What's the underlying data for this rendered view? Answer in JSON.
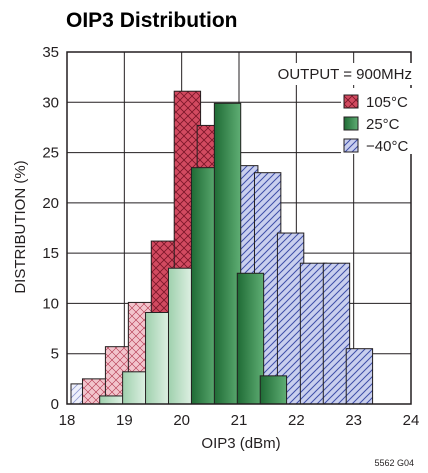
{
  "chart_data": {
    "type": "bar",
    "title": "OIP3 Distribution",
    "xlabel": "OIP3 (dBm)",
    "ylabel": "DISTRIBUTION (%)",
    "xlim": [
      18,
      24
    ],
    "ylim": [
      0,
      35
    ],
    "xticks": [
      18,
      19,
      20,
      21,
      22,
      23,
      24
    ],
    "yticks": [
      0,
      5,
      10,
      15,
      20,
      25,
      30,
      35
    ],
    "grid": true,
    "annotation": "OUTPUT = 900MHz",
    "legend_position": "top-right",
    "footnote": "5562 G04",
    "series": [
      {
        "name": "−40°C",
        "style": "diagonal-hatch",
        "color": "#6b78c8",
        "bins": [
          {
            "x": 18.3,
            "value": 2.0
          },
          {
            "x": 18.7,
            "value": 2.2
          },
          {
            "x": 19.1,
            "value": 3.0
          },
          {
            "x": 19.5,
            "value": 4.5
          },
          {
            "x": 19.9,
            "value": 7.0
          },
          {
            "x": 20.3,
            "value": 13.0
          },
          {
            "x": 20.7,
            "value": 22.5
          },
          {
            "x": 21.1,
            "value": 23.7
          },
          {
            "x": 21.5,
            "value": 23.0
          },
          {
            "x": 21.9,
            "value": 17.0
          },
          {
            "x": 22.3,
            "value": 14.0
          },
          {
            "x": 22.7,
            "value": 14.0
          },
          {
            "x": 23.1,
            "value": 5.5
          }
        ]
      },
      {
        "name": "105°C",
        "style": "crosshatch",
        "color": "#c0304a",
        "bins": [
          {
            "x": 18.5,
            "value": 2.5
          },
          {
            "x": 18.9,
            "value": 5.7
          },
          {
            "x": 19.3,
            "value": 10.1
          },
          {
            "x": 19.7,
            "value": 16.2
          },
          {
            "x": 20.1,
            "value": 31.1
          },
          {
            "x": 20.5,
            "value": 27.7
          }
        ]
      },
      {
        "name": "25°C",
        "style": "gradient",
        "color": "#3a8a50",
        "bins": [
          {
            "x": 18.8,
            "value": 0.8
          },
          {
            "x": 19.2,
            "value": 3.2
          },
          {
            "x": 19.6,
            "value": 9.1
          },
          {
            "x": 20.0,
            "value": 13.5
          },
          {
            "x": 20.4,
            "value": 23.5
          },
          {
            "x": 20.8,
            "value": 29.9
          },
          {
            "x": 21.2,
            "value": 13.0
          },
          {
            "x": 21.6,
            "value": 2.8
          }
        ]
      }
    ]
  }
}
